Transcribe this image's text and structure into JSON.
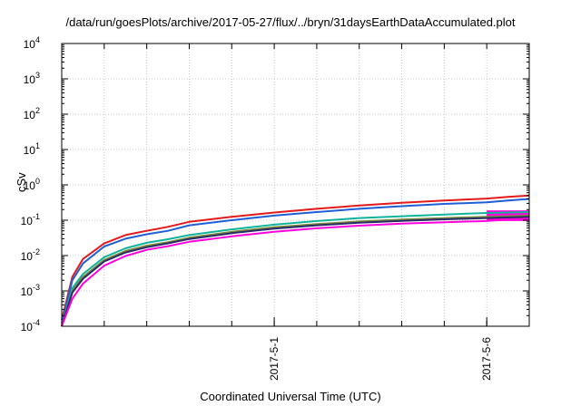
{
  "chart_data": {
    "type": "line",
    "title": "/data/run/goesPlots/archive/2017-05-27/flux/../bryn/31daysEarthDataAccumulated.plot",
    "xlabel": "Coordinated Universal Time (UTC)",
    "ylabel": "cSv",
    "y_scale": "log",
    "ylim": [
      0.0001,
      10000
    ],
    "xlim": [
      "2017-04-26",
      "2017-05-07"
    ],
    "grid": true,
    "y_ticks": [
      {
        "value": 0.0001,
        "base": "10",
        "exp": "-4"
      },
      {
        "value": 0.001,
        "base": "10",
        "exp": "-3"
      },
      {
        "value": 0.01,
        "base": "10",
        "exp": "-2"
      },
      {
        "value": 0.1,
        "base": "10",
        "exp": "-1"
      },
      {
        "value": 1,
        "base": "10",
        "exp": "0"
      },
      {
        "value": 10,
        "base": "10",
        "exp": "1"
      },
      {
        "value": 100,
        "base": "10",
        "exp": "2"
      },
      {
        "value": 1000,
        "base": "10",
        "exp": "3"
      },
      {
        "value": 10000,
        "base": "10",
        "exp": "4"
      }
    ],
    "x_ticks": [
      {
        "date": "2017-05-01",
        "label": "2017-5-1"
      },
      {
        "date": "2017-05-06",
        "label": "2017-5-6"
      }
    ],
    "x_minor_ticks": [
      "2017-04-27",
      "2017-04-28",
      "2017-04-29",
      "2017-04-30",
      "2017-05-01",
      "2017-05-02",
      "2017-05-03",
      "2017-05-04",
      "2017-05-05",
      "2017-05-06"
    ],
    "x": [
      "2017-04-26 00:00",
      "2017-04-26 06:00",
      "2017-04-26 12:00",
      "2017-04-27 00:00",
      "2017-04-27 12:00",
      "2017-04-28 00:00",
      "2017-04-28 12:00",
      "2017-04-29 00:00",
      "2017-04-30 00:00",
      "2017-05-01 00:00",
      "2017-05-02 00:00",
      "2017-05-03 00:00",
      "2017-05-04 00:00",
      "2017-05-05 00:00",
      "2017-05-06 00:00",
      "2017-05-06 12:00",
      "2017-05-07 00:00"
    ],
    "series": [
      {
        "color": "#e41a1c",
        "values": [
          0.00015,
          0.0025,
          0.008,
          0.022,
          0.038,
          0.05,
          0.065,
          0.09,
          0.125,
          0.165,
          0.21,
          0.26,
          0.31,
          0.36,
          0.41,
          0.46,
          0.5
        ]
      },
      {
        "color": "#1f5fd6",
        "values": [
          0.00012,
          0.002,
          0.006,
          0.018,
          0.03,
          0.04,
          0.05,
          0.072,
          0.1,
          0.135,
          0.17,
          0.21,
          0.25,
          0.29,
          0.32,
          0.36,
          0.4
        ]
      },
      {
        "color": "#11b39a",
        "values": [
          0.0001,
          0.0012,
          0.003,
          0.009,
          0.016,
          0.023,
          0.029,
          0.038,
          0.055,
          0.075,
          0.095,
          0.115,
          0.13,
          0.145,
          0.16,
          0.165,
          0.17
        ]
      },
      {
        "color": "#7a8a3a",
        "values": [
          0.0001,
          0.001,
          0.0025,
          0.0075,
          0.0135,
          0.019,
          0.024,
          0.032,
          0.047,
          0.063,
          0.078,
          0.092,
          0.104,
          0.115,
          0.125,
          0.13,
          0.135
        ]
      },
      {
        "color": "#2a2a6a",
        "values": [
          0.0001,
          0.0009,
          0.0022,
          0.0068,
          0.0122,
          0.0172,
          0.0222,
          0.0295,
          0.043,
          0.058,
          0.072,
          0.085,
          0.096,
          0.106,
          0.115,
          0.12,
          0.125
        ]
      },
      {
        "color": "#ff00dd",
        "values": [
          0.0001,
          0.0006,
          0.0016,
          0.0052,
          0.0097,
          0.0145,
          0.0185,
          0.0245,
          0.035,
          0.047,
          0.059,
          0.07,
          0.08,
          0.088,
          0.095,
          0.105,
          0.11
        ]
      }
    ],
    "band": {
      "color": "#ff00dd",
      "x_start": "2017-05-06 00:00",
      "x_end": "2017-05-07 00:00",
      "low": 0.095,
      "high": 0.19
    }
  }
}
